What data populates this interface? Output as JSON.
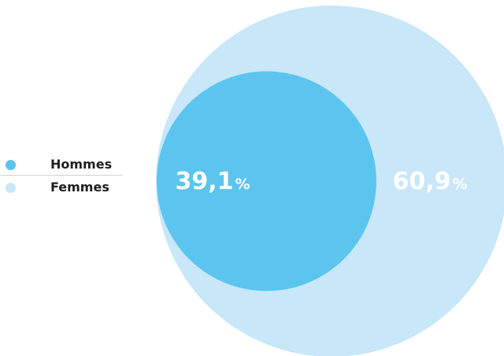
{
  "chart_data": {
    "type": "area",
    "series": [
      {
        "name": "Hommes",
        "value": 39.1,
        "label": "39,1",
        "unit": "%",
        "color": "#5bc5ef"
      },
      {
        "name": "Femmes",
        "value": 60.9,
        "label": "60,9",
        "unit": "%",
        "color": "#c8e7f8"
      }
    ],
    "legend": "left",
    "grid": false
  }
}
